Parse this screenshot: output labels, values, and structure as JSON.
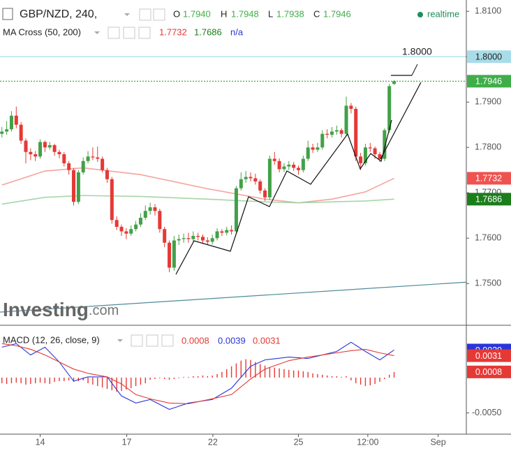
{
  "chart_data": [
    {
      "type": "candlestick",
      "title": "GBP/NZD, 240,",
      "quote": [
        {
          "label": "O",
          "value": "1.7940"
        },
        {
          "label": "H",
          "value": "1.7948"
        },
        {
          "label": "L",
          "value": "1.7938"
        },
        {
          "label": "C",
          "value": "1.7946"
        }
      ],
      "status": "realtime",
      "up_color": "#43a047",
      "down_color": "#e53935",
      "ohlc": [
        [
          1.783,
          1.7845,
          1.7822,
          1.7835
        ],
        [
          1.7835,
          1.7858,
          1.7828,
          1.784
        ],
        [
          1.784,
          1.788,
          1.7835,
          1.787
        ],
        [
          1.787,
          1.789,
          1.7842,
          1.785
        ],
        [
          1.785,
          1.7856,
          1.7808,
          1.7815
        ],
        [
          1.7815,
          1.782,
          1.7765,
          1.779
        ],
        [
          1.779,
          1.7798,
          1.7772,
          1.7785
        ],
        [
          1.7785,
          1.7792,
          1.777,
          1.778
        ],
        [
          1.778,
          1.7818,
          1.7775,
          1.7812
        ],
        [
          1.7812,
          1.7815,
          1.779,
          1.78
        ],
        [
          1.78,
          1.7812,
          1.7795,
          1.7805
        ],
        [
          1.7805,
          1.7808,
          1.7782,
          1.779
        ],
        [
          1.779,
          1.7795,
          1.7776,
          1.7785
        ],
        [
          1.7785,
          1.779,
          1.7758,
          1.7765
        ],
        [
          1.7765,
          1.777,
          1.774,
          1.775
        ],
        [
          1.775,
          1.7755,
          1.7672,
          1.768
        ],
        [
          1.768,
          1.775,
          1.7675,
          1.7745
        ],
        [
          1.7745,
          1.7778,
          1.774,
          1.777
        ],
        [
          1.777,
          1.7792,
          1.7765,
          1.778
        ],
        [
          1.778,
          1.78,
          1.7772,
          1.7778
        ],
        [
          1.7778,
          1.7802,
          1.7768,
          1.7775
        ],
        [
          1.7775,
          1.778,
          1.7745,
          1.775
        ],
        [
          1.775,
          1.7755,
          1.7722,
          1.773
        ],
        [
          1.773,
          1.7735,
          1.7632,
          1.764
        ],
        [
          1.764,
          1.7648,
          1.7618,
          1.7625
        ],
        [
          1.7625,
          1.763,
          1.7605,
          1.7615
        ],
        [
          1.7615,
          1.7622,
          1.7598,
          1.761
        ],
        [
          1.761,
          1.7628,
          1.7605,
          1.762
        ],
        [
          1.762,
          1.7638,
          1.7615,
          1.763
        ],
        [
          1.763,
          1.7655,
          1.7625,
          1.7645
        ],
        [
          1.7645,
          1.7672,
          1.764,
          1.766
        ],
        [
          1.766,
          1.7678,
          1.7652,
          1.7668
        ],
        [
          1.7668,
          1.7675,
          1.765,
          1.766
        ],
        [
          1.766,
          1.7665,
          1.7612,
          1.762
        ],
        [
          1.762,
          1.7625,
          1.758,
          1.759
        ],
        [
          1.759,
          1.7595,
          1.7525,
          1.7535
        ],
        [
          1.7535,
          1.7605,
          1.7528,
          1.7595
        ],
        [
          1.7595,
          1.7608,
          1.7585,
          1.7598
        ],
        [
          1.7598,
          1.761,
          1.759,
          1.76
        ],
        [
          1.76,
          1.7612,
          1.759,
          1.7598
        ],
        [
          1.7598,
          1.7615,
          1.7592,
          1.7605
        ],
        [
          1.7605,
          1.7612,
          1.7595,
          1.7603
        ],
        [
          1.7603,
          1.7608,
          1.7588,
          1.7595
        ],
        [
          1.7595,
          1.7602,
          1.7585,
          1.7592
        ],
        [
          1.7592,
          1.7608,
          1.7586,
          1.76
        ],
        [
          1.76,
          1.7622,
          1.7595,
          1.7615
        ],
        [
          1.7615,
          1.762,
          1.7605,
          1.7612
        ],
        [
          1.7612,
          1.7625,
          1.7606,
          1.7618
        ],
        [
          1.7618,
          1.7628,
          1.7608,
          1.7615
        ],
        [
          1.7615,
          1.7715,
          1.761,
          1.771
        ],
        [
          1.771,
          1.7745,
          1.7705,
          1.773
        ],
        [
          1.773,
          1.7748,
          1.7722,
          1.7735
        ],
        [
          1.7735,
          1.7745,
          1.7725,
          1.7732
        ],
        [
          1.7732,
          1.7742,
          1.7718,
          1.7725
        ],
        [
          1.7725,
          1.773,
          1.7698,
          1.7705
        ],
        [
          1.7705,
          1.771,
          1.7682,
          1.769
        ],
        [
          1.769,
          1.7782,
          1.7685,
          1.7775
        ],
        [
          1.7775,
          1.779,
          1.7762,
          1.777
        ],
        [
          1.777,
          1.7776,
          1.7745,
          1.7752
        ],
        [
          1.7752,
          1.7765,
          1.7746,
          1.7758
        ],
        [
          1.7758,
          1.777,
          1.775,
          1.7762
        ],
        [
          1.7762,
          1.7768,
          1.7748,
          1.7755
        ],
        [
          1.7755,
          1.776,
          1.774,
          1.775
        ],
        [
          1.775,
          1.7782,
          1.7745,
          1.7775
        ],
        [
          1.7775,
          1.7815,
          1.777,
          1.78
        ],
        [
          1.78,
          1.7808,
          1.7788,
          1.7795
        ],
        [
          1.7795,
          1.781,
          1.779,
          1.78
        ],
        [
          1.78,
          1.7838,
          1.7795,
          1.783
        ],
        [
          1.783,
          1.784,
          1.782,
          1.7828
        ],
        [
          1.7828,
          1.7845,
          1.7822,
          1.7835
        ],
        [
          1.7835,
          1.7848,
          1.7828,
          1.7838
        ],
        [
          1.7838,
          1.7842,
          1.7822,
          1.783
        ],
        [
          1.783,
          1.7912,
          1.7825,
          1.7892
        ],
        [
          1.7892,
          1.7898,
          1.7875,
          1.7885
        ],
        [
          1.7885,
          1.789,
          1.777,
          1.778
        ],
        [
          1.778,
          1.7788,
          1.775,
          1.7765
        ],
        [
          1.7765,
          1.7808,
          1.776,
          1.78
        ],
        [
          1.78,
          1.781,
          1.779,
          1.7798
        ],
        [
          1.7798,
          1.7802,
          1.7775,
          1.7785
        ],
        [
          1.7785,
          1.779,
          1.7768,
          1.7775
        ],
        [
          1.7775,
          1.7842,
          1.777,
          1.7838
        ],
        [
          1.7838,
          1.794,
          1.7832,
          1.7935
        ],
        [
          1.794,
          1.7948,
          1.7938,
          1.7946
        ]
      ],
      "indicator": {
        "name": "MA Cross (50, 200)",
        "extra": "n/a",
        "x": [
          0,
          9,
          17,
          29,
          43,
          55,
          62,
          69,
          76,
          82
        ],
        "series": [
          {
            "color": "#f5a39c",
            "badge_color": "#ef5350",
            "values": [
              1.7717,
              1.7748,
              1.7755,
              1.774,
              1.7709,
              1.7686,
              1.7678,
              1.7686,
              1.7702,
              1.7732
            ],
            "value_label": "1.7732"
          },
          {
            "color": "#a5d6a7",
            "badge_color": "#1b7e1b",
            "values": [
              1.7675,
              1.769,
              1.7694,
              1.7692,
              1.7686,
              1.768,
              1.7678,
              1.768,
              1.7682,
              1.7686
            ],
            "value_label": "1.7686"
          }
        ]
      },
      "levels": [
        {
          "value": 1.8,
          "label": "1.8000",
          "color": "#a8dce8"
        },
        {
          "value": 1.7946,
          "label": "1.7946",
          "color": "#3fae49"
        }
      ],
      "trendline": {
        "values": [
          1.7437,
          1.7503
        ],
        "color": "#4d8b99"
      },
      "logo": {
        "name": "Investing",
        "suffix": ".com"
      },
      "xlim": [
        -0.4,
        97.1
      ],
      "ylim": [
        1.7408,
        1.8125
      ],
      "yticks": [
        {
          "value": 1.81,
          "label": "1.8100"
        },
        {
          "value": 1.8,
          "label": "1.8000"
        },
        {
          "value": 1.79,
          "label": "1.7900"
        },
        {
          "value": 1.78,
          "label": "1.7800"
        },
        {
          "value": 1.77,
          "label": "1.7700"
        },
        {
          "value": 1.76,
          "label": "1.7600"
        },
        {
          "value": 1.75,
          "label": "1.7500"
        }
      ]
    },
    {
      "type": "macd",
      "title": "MACD (12, 26, close, 9)",
      "histogram": {
        "color": "#e53935",
        "value_label": "0.0008",
        "values": [
          -0.0008,
          -0.0009,
          -0.0008,
          -0.0007,
          -0.0008,
          -0.001,
          -0.0009,
          -0.0008,
          -0.0007,
          -0.0008,
          -0.0009,
          -0.0006,
          -0.0005,
          -0.0005,
          -0.0004,
          -0.0006,
          -0.0005,
          -0.0004,
          -0.0008,
          -0.001,
          -0.0012,
          -0.0014,
          -0.0016,
          -0.0018,
          -0.002,
          -0.0019,
          -0.0017,
          -0.0015,
          -0.0012,
          -0.001,
          -0.0008,
          -0.0003,
          -0.0002,
          -0.0001,
          -0.0002,
          -0.0003,
          -0.0002,
          -0.0001,
          0.0001,
          0.0001,
          0.0002,
          0.0002,
          0.0003,
          0.0002,
          0.0003,
          0.0005,
          0.0008,
          0.0012,
          0.0016,
          0.002,
          0.0024,
          0.0026,
          0.0025,
          0.0022,
          0.0019,
          0.0017,
          0.0015,
          0.0014,
          0.0013,
          0.0012,
          0.0011,
          0.001,
          0.001,
          0.0009,
          0.0008,
          0.0006,
          0.0005,
          0.0004,
          0.0003,
          0.0002,
          0.0002,
          0.0001,
          0.0002,
          -0.0004,
          -0.0008,
          -0.001,
          -0.0012,
          -0.0011,
          -0.0009,
          -0.0006,
          -0.0002,
          0.0004,
          0.0008
        ]
      },
      "x": [
        0,
        3,
        6,
        9,
        12,
        15,
        18,
        22,
        25,
        28,
        31,
        35,
        39,
        44,
        48,
        52,
        55,
        60,
        64,
        70,
        73,
        76,
        79,
        82
      ],
      "series": [
        {
          "color": "#2a35d8",
          "value_label": "0.0039",
          "values": [
            0.0043,
            0.0048,
            0.0032,
            0.0043,
            0.0022,
            -0.0005,
            0.0001,
            0.0001,
            -0.0026,
            -0.0036,
            -0.0031,
            -0.0045,
            -0.0036,
            -0.0031,
            -0.0015,
            0.0016,
            0.0025,
            0.0029,
            0.0027,
            0.0037,
            0.005,
            0.0037,
            0.0025,
            0.0039
          ]
        },
        {
          "color": "#e53935",
          "value_label": "0.0031",
          "values": [
            0.0048,
            0.0045,
            0.004,
            0.0032,
            0.0022,
            0.0012,
            0.0006,
            0.0001,
            -0.0009,
            -0.0024,
            -0.003,
            -0.0036,
            -0.0037,
            -0.003,
            -0.0024,
            -0.0002,
            0.0012,
            0.0024,
            0.0029,
            0.0035,
            0.0038,
            0.004,
            0.0035,
            0.0031
          ]
        }
      ],
      "xlim": [
        -0.4,
        97.1
      ],
      "ylim": [
        -0.008,
        0.0074
      ],
      "yticks": [
        {
          "value": -0.005,
          "label": "-0.0050"
        }
      ],
      "xticks": [
        {
          "value": 8,
          "label": "14"
        },
        {
          "value": 26.1,
          "label": "17"
        },
        {
          "value": 44.1,
          "label": "22"
        },
        {
          "value": 62,
          "label": "25"
        },
        {
          "value": 76.5,
          "label": "12:00"
        },
        {
          "value": 91.2,
          "label": "Sep"
        }
      ]
    }
  ]
}
